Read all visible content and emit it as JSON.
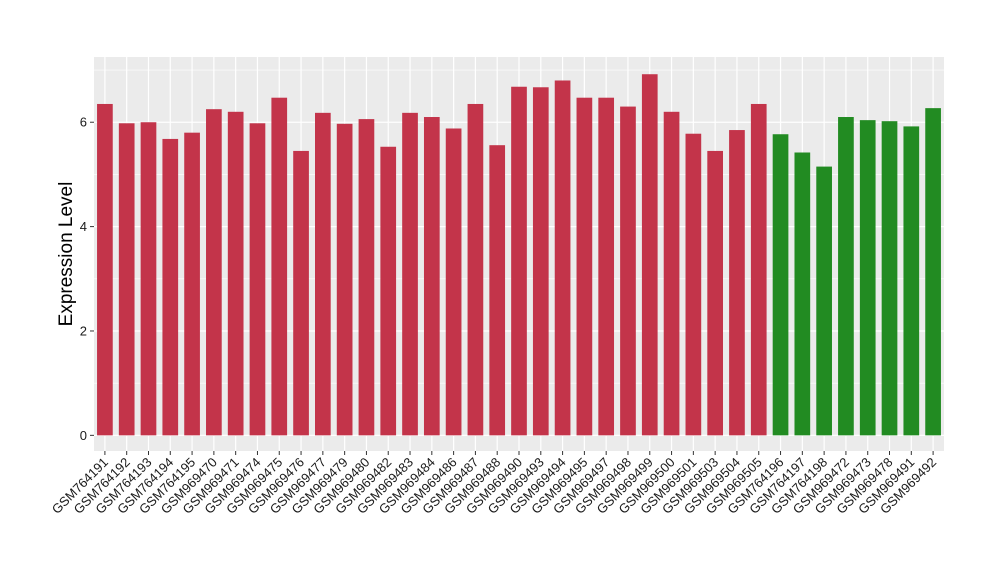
{
  "chart_data": {
    "type": "bar",
    "title": "",
    "xlabel": "",
    "ylabel": "Expression Level",
    "ylim": [
      -0.3,
      7.25
    ],
    "yticks": [
      0,
      2,
      4,
      6
    ],
    "grid": true,
    "legend": "none",
    "colors": {
      "group_a": "#C3344A",
      "group_b": "#228B22",
      "panel_background": "#EBEBEB",
      "gridline": "#FFFFFF"
    },
    "categories": [
      "GSM764191",
      "GSM764192",
      "GSM764193",
      "GSM764194",
      "GSM764195",
      "GSM969470",
      "GSM969471",
      "GSM969474",
      "GSM969475",
      "GSM969476",
      "GSM969477",
      "GSM969479",
      "GSM969480",
      "GSM969482",
      "GSM969483",
      "GSM969484",
      "GSM969486",
      "GSM969487",
      "GSM969488",
      "GSM969490",
      "GSM969493",
      "GSM969494",
      "GSM969495",
      "GSM969497",
      "GSM969498",
      "GSM969499",
      "GSM969500",
      "GSM969501",
      "GSM969503",
      "GSM969504",
      "GSM969505",
      "GSM764196",
      "GSM764197",
      "GSM764198",
      "GSM969472",
      "GSM969473",
      "GSM969478",
      "GSM969491",
      "GSM969492"
    ],
    "values": [
      6.35,
      5.98,
      6.0,
      5.68,
      5.8,
      6.25,
      6.2,
      5.98,
      6.47,
      5.45,
      6.18,
      5.97,
      6.06,
      5.53,
      6.18,
      6.1,
      5.88,
      6.35,
      5.56,
      6.68,
      6.67,
      6.8,
      6.47,
      6.47,
      6.3,
      6.92,
      6.2,
      5.78,
      5.45,
      5.85,
      6.35,
      5.77,
      5.42,
      5.15,
      6.1,
      6.04,
      6.02,
      5.92,
      6.27
    ],
    "groups": [
      "a",
      "a",
      "a",
      "a",
      "a",
      "a",
      "a",
      "a",
      "a",
      "a",
      "a",
      "a",
      "a",
      "a",
      "a",
      "a",
      "a",
      "a",
      "a",
      "a",
      "a",
      "a",
      "a",
      "a",
      "a",
      "a",
      "a",
      "a",
      "a",
      "a",
      "a",
      "b",
      "b",
      "b",
      "b",
      "b",
      "b",
      "b",
      "b"
    ]
  }
}
